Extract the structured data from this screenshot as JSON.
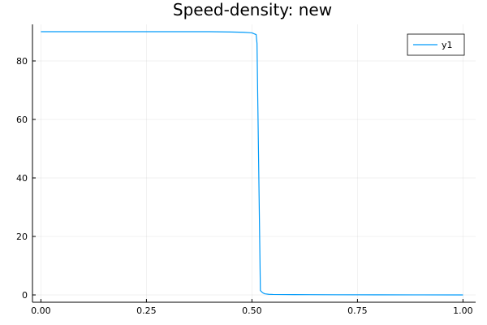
{
  "chart_data": {
    "type": "line",
    "title": "Speed-density: new",
    "xlabel": "",
    "ylabel": "",
    "xlim": [
      -0.02,
      1.03
    ],
    "ylim": [
      -2.5,
      92.5
    ],
    "x_ticks": [
      0.0,
      0.25,
      0.5,
      0.75,
      1.0
    ],
    "x_tick_labels": [
      "0.00",
      "0.25",
      "0.50",
      "0.75",
      "1.00"
    ],
    "y_ticks": [
      0,
      20,
      40,
      60,
      80
    ],
    "y_tick_labels": [
      "0",
      "20",
      "40",
      "60",
      "80"
    ],
    "grid": true,
    "legend_position": "top-right",
    "series": [
      {
        "name": "y1",
        "color": "#009af9",
        "x": [
          0.0,
          0.1,
          0.2,
          0.3,
          0.4,
          0.45,
          0.48,
          0.5,
          0.505,
          0.51,
          0.512,
          0.52,
          0.525,
          0.53,
          0.54,
          0.55,
          0.6,
          0.7,
          0.8,
          0.9,
          1.0
        ],
        "y": [
          90.0,
          90.0,
          90.0,
          90.0,
          90.0,
          89.9,
          89.8,
          89.6,
          89.3,
          89.0,
          86.0,
          1.5,
          0.8,
          0.4,
          0.2,
          0.15,
          0.1,
          0.05,
          0.03,
          0.02,
          0.0
        ]
      }
    ]
  }
}
